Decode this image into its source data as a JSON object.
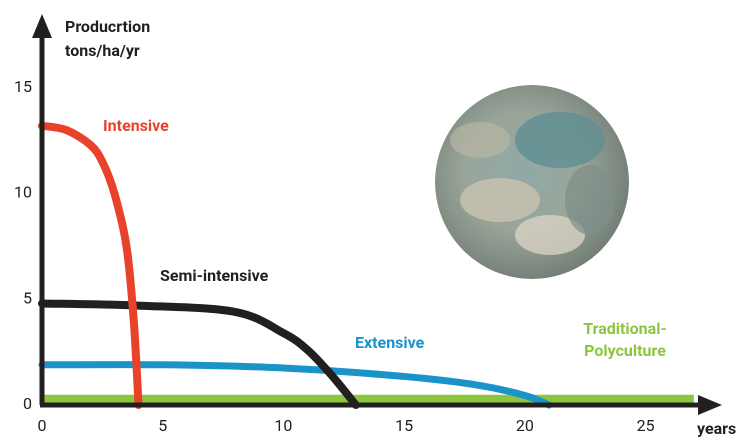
{
  "chart_data": {
    "type": "line",
    "ylabel": [
      "Producrtion",
      "tons/ha/yr"
    ],
    "xlabel": "years",
    "xlim": [
      0,
      28
    ],
    "ylim": [
      0,
      18.2
    ],
    "xticks": [
      0,
      5,
      10,
      15,
      20,
      25
    ],
    "yticks": [
      0,
      5,
      10,
      15
    ],
    "series": [
      {
        "name": "Intensive",
        "color": "#e8432a",
        "x": [
          0,
          1,
          2,
          2.5,
          3,
          3.5,
          3.8,
          4
        ],
        "values": [
          13.2,
          13.0,
          12.3,
          11.5,
          10,
          7.5,
          4,
          0
        ]
      },
      {
        "name": "Semi-intensive",
        "color": "#231f20",
        "x": [
          0,
          4,
          8,
          10,
          11,
          12,
          13
        ],
        "values": [
          4.8,
          4.7,
          4.4,
          3.4,
          2.6,
          1.4,
          0
        ]
      },
      {
        "name": "Extensive",
        "color": "#1a93c9",
        "x": [
          0,
          5,
          10,
          15,
          18,
          20,
          21
        ],
        "values": [
          1.9,
          1.9,
          1.75,
          1.35,
          0.95,
          0.45,
          0
        ]
      },
      {
        "name": "Traditional-Polyculture",
        "color": "#8cc63f",
        "x": [
          0,
          27
        ],
        "values": [
          0.25,
          0.25
        ]
      }
    ]
  }
}
